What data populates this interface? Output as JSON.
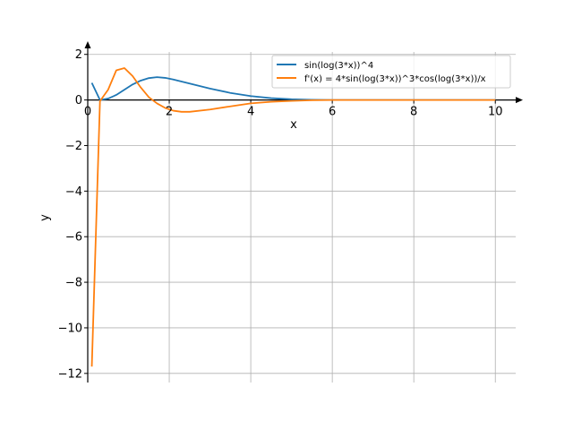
{
  "chart_data": {
    "type": "line",
    "xlabel": "x",
    "ylabel": "y",
    "xlim": [
      0,
      10.5
    ],
    "ylim": [
      -12.4,
      2.5
    ],
    "grid": true,
    "legend_position": "top-right",
    "x_ticks": [
      {
        "value": 0,
        "label": "0"
      },
      {
        "value": 2,
        "label": "2"
      },
      {
        "value": 4,
        "label": "4"
      },
      {
        "value": 6,
        "label": "6"
      },
      {
        "value": 8,
        "label": "8"
      },
      {
        "value": 10,
        "label": "10"
      }
    ],
    "y_ticks": [
      {
        "value": 2,
        "label": "2"
      },
      {
        "value": 0,
        "label": "0"
      },
      {
        "value": -2,
        "label": "−2"
      },
      {
        "value": -4,
        "label": "−4"
      },
      {
        "value": -6,
        "label": "−6"
      },
      {
        "value": -8,
        "label": "−8"
      },
      {
        "value": -10,
        "label": "−10"
      },
      {
        "value": -12,
        "label": "−12"
      }
    ],
    "series": [
      {
        "name": "sin(log(3*x))^4",
        "color": "#1f77b4",
        "x": [
          0.1,
          0.3,
          0.5,
          0.7,
          0.9,
          1.1,
          1.3,
          1.5,
          1.7,
          1.9,
          2.1,
          2.5,
          3.0,
          3.5,
          4.0,
          4.5,
          5.0,
          5.5,
          6.0,
          7.0,
          8.0,
          9.0,
          10.0
        ],
        "y": [
          0.75,
          0.0,
          0.06,
          0.22,
          0.45,
          0.68,
          0.85,
          0.96,
          1.0,
          0.97,
          0.9,
          0.72,
          0.5,
          0.31,
          0.17,
          0.08,
          0.03,
          0.01,
          0.0,
          0.0,
          0.0,
          0.0,
          0.0
        ]
      },
      {
        "name": "f'(x) = 4*sin(log(3*x))^3*cos(log(3*x))/x",
        "color": "#ff7f0e",
        "x": [
          0.1,
          0.3,
          0.5,
          0.7,
          0.9,
          1.1,
          1.3,
          1.5,
          1.7,
          1.9,
          2.1,
          2.3,
          2.5,
          3.0,
          3.5,
          4.0,
          4.5,
          5.0,
          5.5,
          6.0,
          7.0,
          8.0,
          9.0,
          10.0
        ],
        "y": [
          -11.7,
          -0.05,
          0.45,
          1.3,
          1.4,
          1.05,
          0.55,
          0.12,
          -0.15,
          -0.35,
          -0.47,
          -0.52,
          -0.52,
          -0.42,
          -0.28,
          -0.15,
          -0.08,
          -0.04,
          -0.01,
          0.0,
          0.0,
          0.0,
          0.0,
          0.0
        ]
      }
    ]
  }
}
